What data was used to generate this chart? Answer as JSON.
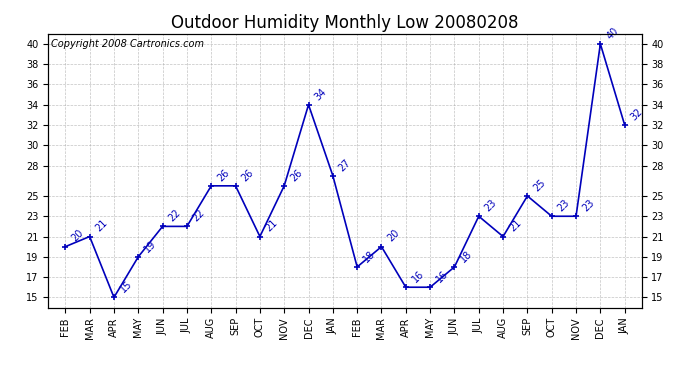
{
  "title": "Outdoor Humidity Monthly Low 20080208",
  "copyright": "Copyright 2008 Cartronics.com",
  "x_labels": [
    "FEB",
    "MAR",
    "APR",
    "MAY",
    "JUN",
    "JUL",
    "AUG",
    "SEP",
    "OCT",
    "NOV",
    "DEC",
    "JAN",
    "FEB",
    "MAR",
    "APR",
    "MAY",
    "JUN",
    "JUL",
    "AUG",
    "SEP",
    "OCT",
    "NOV",
    "DEC",
    "JAN"
  ],
  "y_values": [
    20,
    21,
    15,
    19,
    22,
    22,
    26,
    26,
    21,
    26,
    34,
    27,
    18,
    20,
    16,
    16,
    18,
    23,
    21,
    25,
    23,
    23,
    40,
    32
  ],
  "ylim": [
    14,
    41
  ],
  "yticks_left": [
    15,
    17,
    19,
    21,
    23,
    25,
    28,
    30,
    32,
    34,
    36,
    38,
    40
  ],
  "yticks_right": [
    15,
    17,
    19,
    21,
    23,
    25,
    28,
    30,
    32,
    34,
    36,
    38,
    40
  ],
  "line_color": "#0000bb",
  "marker_color": "#0000bb",
  "bg_color": "#ffffff",
  "grid_color": "#aaaaaa",
  "title_fontsize": 12,
  "tick_fontsize": 7,
  "annot_fontsize": 7,
  "copyright_fontsize": 7
}
